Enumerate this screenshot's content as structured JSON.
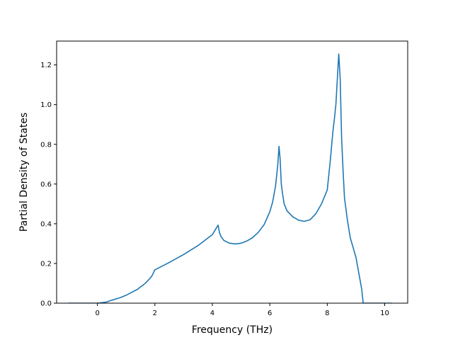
{
  "chart_data": {
    "type": "line",
    "title": "",
    "xlabel": "Frequency (THz)",
    "ylabel": "Partial Density of States",
    "xlim": [
      -1.42,
      10.8
    ],
    "ylim": [
      0.0,
      1.32
    ],
    "xticks": [
      0,
      2,
      4,
      6,
      8,
      10
    ],
    "yticks": [
      0.0,
      0.2,
      0.4,
      0.6,
      0.8,
      1.0,
      1.2
    ],
    "xtick_labels": [
      "0",
      "2",
      "4",
      "6",
      "8",
      "10"
    ],
    "ytick_labels": [
      "0.0",
      "0.2",
      "0.4",
      "0.6",
      "0.8",
      "1.0",
      "1.2"
    ],
    "grid": false,
    "legend": "none",
    "series": [
      {
        "color": "#1f77b4",
        "x": [
          -1.0,
          0.0,
          0.3,
          0.5,
          0.8,
          1.0,
          1.2,
          1.4,
          1.5,
          1.6,
          1.7,
          1.8,
          1.9,
          2.0,
          2.5,
          3.0,
          3.5,
          4.0,
          4.2,
          4.25,
          4.3,
          4.4,
          4.6,
          4.8,
          5.0,
          5.2,
          5.4,
          5.6,
          5.8,
          6.0,
          6.1,
          6.2,
          6.28,
          6.32,
          6.36,
          6.4,
          6.45,
          6.5,
          6.6,
          6.8,
          7.0,
          7.2,
          7.4,
          7.6,
          7.8,
          8.0,
          8.1,
          8.2,
          8.25,
          8.3,
          8.4,
          8.45,
          8.5,
          8.55,
          8.6,
          8.7,
          8.8,
          9.0,
          9.1,
          9.2,
          9.25,
          9.3,
          9.35,
          9.5,
          10.0,
          10.25
        ],
        "y": [
          0.0,
          0.0,
          0.005,
          0.015,
          0.028,
          0.04,
          0.055,
          0.07,
          0.082,
          0.092,
          0.105,
          0.12,
          0.138,
          0.168,
          0.205,
          0.245,
          0.29,
          0.345,
          0.393,
          0.355,
          0.336,
          0.316,
          0.302,
          0.298,
          0.302,
          0.313,
          0.33,
          0.357,
          0.395,
          0.46,
          0.51,
          0.59,
          0.7,
          0.79,
          0.725,
          0.6,
          0.545,
          0.5,
          0.465,
          0.435,
          0.418,
          0.412,
          0.42,
          0.45,
          0.5,
          0.57,
          0.71,
          0.87,
          0.93,
          1.0,
          1.255,
          1.13,
          0.83,
          0.67,
          0.53,
          0.42,
          0.33,
          0.23,
          0.15,
          0.07,
          0.0,
          0.0,
          0.0,
          0.0,
          0.0,
          0.0
        ]
      }
    ]
  }
}
